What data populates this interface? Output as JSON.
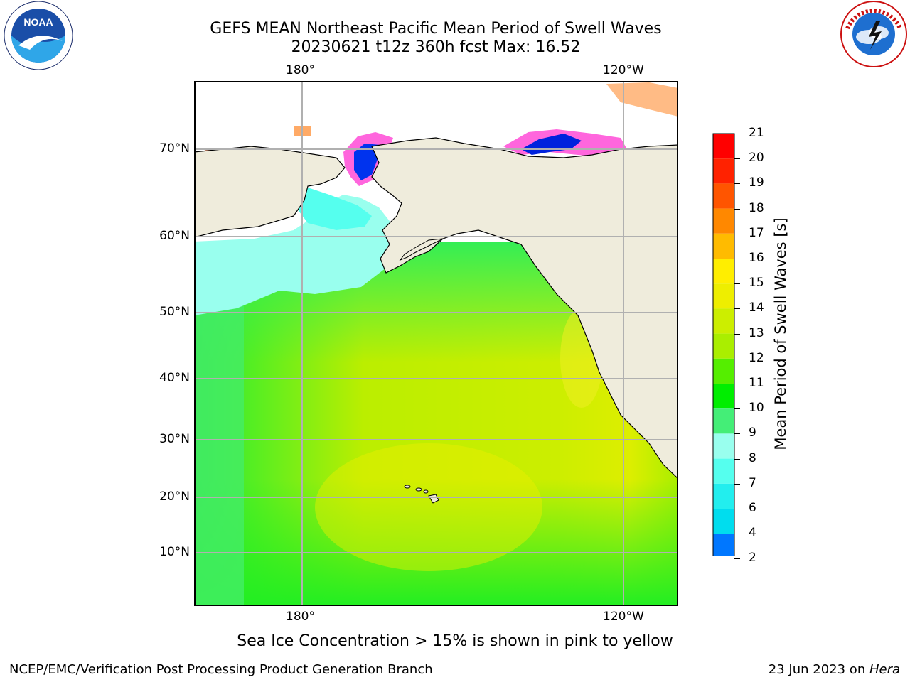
{
  "header": {
    "title_line1": "GEFS MEAN Northeast Pacific Mean Period of Swell Waves",
    "title_line2": "20230621 t12z 360h fcst   Max: 16.52"
  },
  "map": {
    "projection": "Mercator",
    "lon_labels_top": [
      "180°",
      "120°W"
    ],
    "lon_labels_bottom": [
      "180°",
      "120°W"
    ],
    "lat_labels": [
      "70°N",
      "60°N",
      "50°N",
      "40°N",
      "30°N",
      "20°N",
      "10°N"
    ],
    "land_color": "#efecdc",
    "grid_color": "#b0b0b0",
    "features": [
      "Bering Strait sea ice",
      "Beaufort Sea ice",
      "Hawaiian Islands",
      "North American coastline"
    ]
  },
  "colorbar": {
    "label": "Mean Period of Swell Waves [s]",
    "ticks": [
      "2",
      "4",
      "6",
      "7",
      "8",
      "9",
      "10",
      "11",
      "12",
      "13",
      "14",
      "15",
      "16",
      "17",
      "18",
      "19",
      "20",
      "21"
    ],
    "colors": [
      "#0011ee",
      "#0077ff",
      "#00ddee",
      "#22eeee",
      "#55ffee",
      "#99ffee",
      "#44ee77",
      "#00ee00",
      "#55ee00",
      "#aaee00",
      "#ccee00",
      "#eeee00",
      "#ffee00",
      "#ffbb00",
      "#ff8800",
      "#ff5500",
      "#ff2200",
      "#ff0000"
    ],
    "extend": "min"
  },
  "caption": "Sea Ice Concentration > 15% is shown in pink to yellow",
  "footer": {
    "left": "NCEP/EMC/Verification Post Processing Product Generation Branch",
    "right_prefix": "23 Jun 2023 on ",
    "right_machine": "Hera"
  },
  "logos": {
    "left": "noaa-logo",
    "left_text": "NOAA",
    "right": "national-weather-service-logo",
    "right_text": "NATIONAL WEATHER SERVICE"
  }
}
